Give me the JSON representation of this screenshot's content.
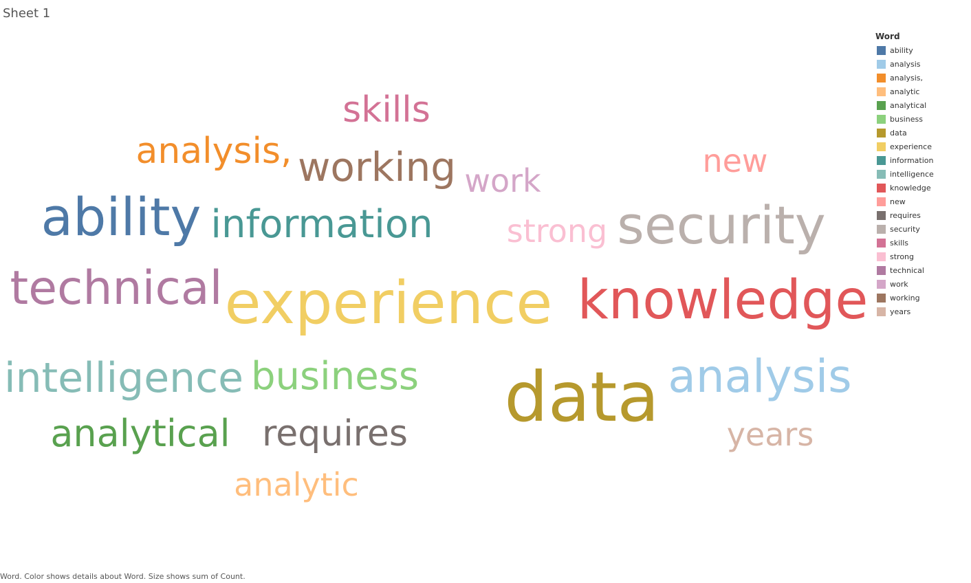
{
  "sheet": {
    "title": "Sheet 1"
  },
  "legend": {
    "title": "Word"
  },
  "caption": "Word.  Color shows details about Word.  Size shows sum of Count.",
  "chart_data": {
    "type": "wordcloud",
    "color_field": "Word",
    "size_field": "sum of Count",
    "words": [
      {
        "word": "ability",
        "color": "#4e79a7"
      },
      {
        "word": "analysis",
        "color": "#a0cbe8"
      },
      {
        "word": "analysis,",
        "color": "#f28e2b"
      },
      {
        "word": "analytic",
        "color": "#ffbe7d"
      },
      {
        "word": "analytical",
        "color": "#59a14f"
      },
      {
        "word": "business",
        "color": "#8cd17d"
      },
      {
        "word": "data",
        "color": "#b6992d"
      },
      {
        "word": "experience",
        "color": "#f1ce63"
      },
      {
        "word": "information",
        "color": "#499894"
      },
      {
        "word": "intelligence",
        "color": "#86bcb6"
      },
      {
        "word": "knowledge",
        "color": "#e15759"
      },
      {
        "word": "new",
        "color": "#ff9d9a"
      },
      {
        "word": "requires",
        "color": "#79706e"
      },
      {
        "word": "security",
        "color": "#bab0ac"
      },
      {
        "word": "skills",
        "color": "#d37295"
      },
      {
        "word": "strong",
        "color": "#fabfd2"
      },
      {
        "word": "technical",
        "color": "#b07aa1"
      },
      {
        "word": "work",
        "color": "#d4a6c8"
      },
      {
        "word": "working",
        "color": "#9d7660"
      },
      {
        "word": "years",
        "color": "#d7b5a6"
      }
    ]
  }
}
